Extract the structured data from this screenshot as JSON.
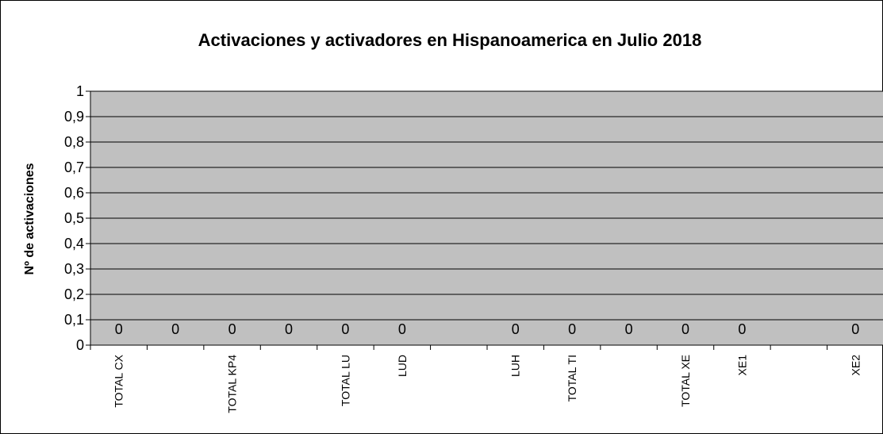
{
  "chart_data": {
    "type": "bar",
    "title": "Activaciones y activadores en Hispanoamerica en Julio 2018",
    "xlabel": "",
    "ylabel": "Nº de activaciones",
    "ylim": [
      0,
      1
    ],
    "yticks": [
      "0",
      "0,1",
      "0,2",
      "0,3",
      "0,4",
      "0,5",
      "0,6",
      "0,7",
      "0,8",
      "0,9",
      "1"
    ],
    "grid": true,
    "legend": "none",
    "categories": [
      "TOTAL CX",
      "",
      "TOTAL KP4",
      "",
      "TOTAL LU",
      "LUD",
      "",
      "LUH",
      "TOTAL TI",
      "",
      "TOTAL XE",
      "XE1",
      "",
      "XE2"
    ],
    "series": [
      {
        "values": [
          0,
          0,
          0,
          0,
          0,
          0,
          null,
          0,
          0,
          0,
          0,
          0,
          null,
          0
        ],
        "data_labels": [
          "0",
          "0",
          "0",
          "0",
          "0",
          "0",
          "",
          "0",
          "0",
          "0",
          "0",
          "0",
          "",
          "0"
        ]
      }
    ],
    "colors": {
      "plot_background": "#c0c0c0",
      "gridline": "#000000",
      "frame": "#000000"
    }
  }
}
